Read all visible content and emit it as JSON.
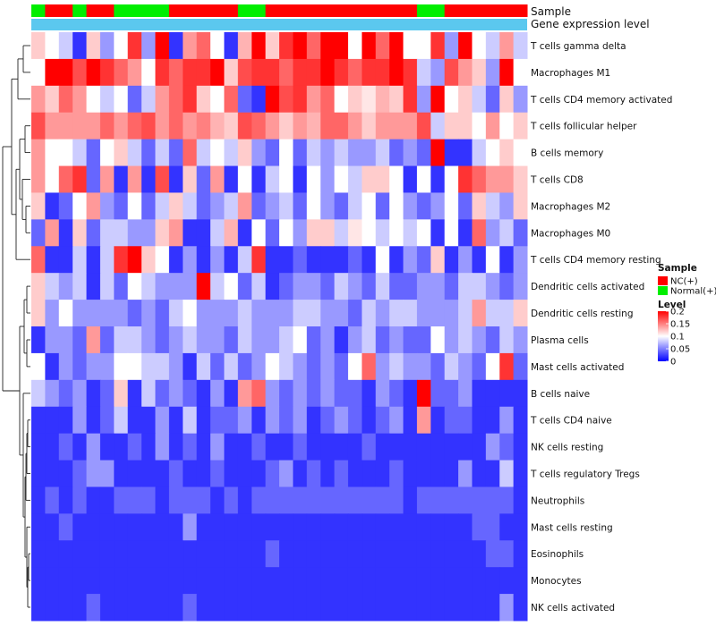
{
  "chart_data": {
    "type": "heatmap",
    "title": "",
    "n_samples": 36,
    "rows": [
      "T cells gamma delta",
      "Macrophages M1",
      "T cells CD4 memory activated",
      "T cells follicular helper",
      "B cells memory",
      "T cells CD8",
      "Macrophages M2",
      "Macrophages M0",
      "T cells CD4 memory resting",
      "Dendritic cells activated",
      "Dendritic cells resting",
      "Plasma cells",
      "Mast cells activated",
      "B cells naive",
      "T cells CD4 naive",
      "NK cells resting",
      "T cells regulatory  Tregs",
      "Neutrophils",
      "Mast cells resting",
      "Eosinophils",
      "Monocytes",
      "NK cells activated"
    ],
    "sample_groups": [
      "Normal(+)",
      "NC(+)",
      "NC(+)",
      "Normal(+)",
      "NC(+)",
      "NC(+)",
      "Normal(+)",
      "Normal(+)",
      "Normal(+)",
      "Normal(+)",
      "NC(+)",
      "NC(+)",
      "NC(+)",
      "NC(+)",
      "NC(+)",
      "Normal(+)",
      "Normal(+)",
      "NC(+)",
      "NC(+)",
      "NC(+)",
      "NC(+)",
      "NC(+)",
      "NC(+)",
      "NC(+)",
      "NC(+)",
      "NC(+)",
      "NC(+)",
      "NC(+)",
      "Normal(+)",
      "Normal(+)",
      "NC(+)",
      "NC(+)",
      "NC(+)",
      "NC(+)",
      "NC(+)",
      "NC(+)"
    ],
    "annotations": [
      {
        "name": "Sample",
        "type": "categorical"
      },
      {
        "name": "Gene expression level",
        "type": "continuous",
        "color": "#5bc8ef"
      }
    ],
    "values": [
      [
        0.12,
        0.1,
        0.08,
        0.02,
        0.12,
        0.06,
        0.1,
        0.18,
        0.06,
        0.2,
        0.02,
        0.14,
        0.16,
        0.1,
        0.02,
        0.13,
        0.2,
        0.12,
        0.18,
        0.2,
        0.16,
        0.22,
        0.22,
        0.1,
        0.2,
        0.16,
        0.2,
        0.1,
        0.1,
        0.18,
        0.06,
        0.2,
        0.1,
        0.08,
        0.14,
        0.08
      ],
      [
        0.1,
        0.22,
        0.2,
        0.17,
        0.2,
        0.18,
        0.16,
        0.14,
        0.1,
        0.18,
        0.16,
        0.18,
        0.18,
        0.2,
        0.12,
        0.17,
        0.18,
        0.18,
        0.16,
        0.18,
        0.18,
        0.2,
        0.18,
        0.16,
        0.18,
        0.18,
        0.2,
        0.18,
        0.08,
        0.06,
        0.17,
        0.14,
        0.12,
        0.06,
        0.22,
        0.1
      ],
      [
        0.14,
        0.12,
        0.16,
        0.14,
        0.1,
        0.08,
        0.1,
        0.04,
        0.08,
        0.14,
        0.16,
        0.18,
        0.12,
        0.1,
        0.16,
        0.04,
        0.02,
        0.22,
        0.17,
        0.18,
        0.14,
        0.16,
        0.1,
        0.12,
        0.11,
        0.13,
        0.12,
        0.18,
        0.06,
        0.24,
        0.1,
        0.12,
        0.08,
        0.04,
        0.12,
        0.06
      ],
      [
        0.17,
        0.14,
        0.14,
        0.14,
        0.14,
        0.16,
        0.14,
        0.16,
        0.17,
        0.14,
        0.16,
        0.14,
        0.15,
        0.13,
        0.12,
        0.17,
        0.16,
        0.14,
        0.12,
        0.14,
        0.13,
        0.16,
        0.16,
        0.14,
        0.12,
        0.14,
        0.14,
        0.14,
        0.17,
        0.08,
        0.12,
        0.12,
        0.1,
        0.14,
        0.1,
        0.12
      ],
      [
        0.14,
        0.1,
        0.1,
        0.08,
        0.04,
        0.1,
        0.12,
        0.08,
        0.04,
        0.08,
        0.04,
        0.16,
        0.08,
        0.1,
        0.08,
        0.12,
        0.06,
        0.04,
        0.1,
        0.04,
        0.08,
        0.06,
        0.08,
        0.06,
        0.06,
        0.08,
        0.04,
        0.06,
        0.04,
        0.24,
        0.02,
        0.02,
        0.08,
        0.1,
        0.12,
        0.1
      ],
      [
        0.14,
        0.1,
        0.16,
        0.18,
        0.04,
        0.14,
        0.02,
        0.14,
        0.02,
        0.17,
        0.02,
        0.12,
        0.04,
        0.14,
        0.02,
        0.1,
        0.02,
        0.08,
        0.1,
        0.02,
        0.1,
        0.06,
        0.1,
        0.08,
        0.12,
        0.12,
        0.1,
        0.02,
        0.1,
        0.02,
        0.1,
        0.18,
        0.16,
        0.14,
        0.14,
        0.12
      ],
      [
        0.12,
        0.02,
        0.04,
        0.1,
        0.14,
        0.06,
        0.04,
        0.1,
        0.04,
        0.08,
        0.12,
        0.08,
        0.04,
        0.06,
        0.08,
        0.14,
        0.04,
        0.06,
        0.08,
        0.04,
        0.1,
        0.06,
        0.04,
        0.08,
        0.1,
        0.04,
        0.1,
        0.06,
        0.04,
        0.06,
        0.1,
        0.04,
        0.12,
        0.08,
        0.06,
        0.12
      ],
      [
        0.04,
        0.14,
        0.02,
        0.12,
        0.04,
        0.08,
        0.08,
        0.06,
        0.06,
        0.12,
        0.14,
        0.02,
        0.02,
        0.08,
        0.13,
        0.02,
        0.1,
        0.04,
        0.1,
        0.06,
        0.12,
        0.12,
        0.08,
        0.11,
        0.1,
        0.08,
        0.1,
        0.08,
        0.1,
        0.02,
        0.1,
        0.02,
        0.16,
        0.06,
        0.08,
        0.04
      ],
      [
        0.16,
        0.02,
        0.02,
        0.08,
        0.02,
        0.08,
        0.18,
        0.2,
        0.12,
        0.1,
        0.02,
        0.06,
        0.02,
        0.06,
        0.02,
        0.08,
        0.18,
        0.02,
        0.02,
        0.04,
        0.02,
        0.02,
        0.02,
        0.04,
        0.02,
        0.1,
        0.02,
        0.06,
        0.04,
        0.12,
        0.02,
        0.06,
        0.02,
        0.1,
        0.02,
        0.06
      ],
      [
        0.12,
        0.08,
        0.06,
        0.08,
        0.02,
        0.08,
        0.04,
        0.1,
        0.08,
        0.06,
        0.06,
        0.06,
        0.22,
        0.08,
        0.1,
        0.04,
        0.08,
        0.02,
        0.04,
        0.06,
        0.06,
        0.04,
        0.08,
        0.06,
        0.04,
        0.08,
        0.04,
        0.04,
        0.06,
        0.06,
        0.04,
        0.08,
        0.08,
        0.06,
        0.04,
        0.06
      ],
      [
        0.12,
        0.06,
        0.1,
        0.06,
        0.06,
        0.06,
        0.06,
        0.04,
        0.06,
        0.04,
        0.08,
        0.1,
        0.06,
        0.06,
        0.06,
        0.08,
        0.06,
        0.06,
        0.06,
        0.08,
        0.08,
        0.06,
        0.06,
        0.04,
        0.08,
        0.06,
        0.08,
        0.08,
        0.06,
        0.06,
        0.06,
        0.08,
        0.14,
        0.08,
        0.08,
        0.12
      ],
      [
        0.02,
        0.06,
        0.06,
        0.04,
        0.14,
        0.04,
        0.08,
        0.08,
        0.06,
        0.04,
        0.06,
        0.08,
        0.06,
        0.06,
        0.04,
        0.08,
        0.06,
        0.06,
        0.08,
        0.1,
        0.04,
        0.06,
        0.02,
        0.06,
        0.08,
        0.04,
        0.06,
        0.04,
        0.04,
        0.1,
        0.06,
        0.08,
        0.06,
        0.04,
        0.08,
        0.06
      ],
      [
        0.1,
        0.02,
        0.06,
        0.04,
        0.06,
        0.06,
        0.1,
        0.1,
        0.08,
        0.08,
        0.06,
        0.02,
        0.08,
        0.04,
        0.08,
        0.04,
        0.06,
        0.1,
        0.08,
        0.06,
        0.04,
        0.06,
        0.04,
        0.1,
        0.16,
        0.06,
        0.08,
        0.06,
        0.06,
        0.04,
        0.08,
        0.06,
        0.04,
        0.1,
        0.18,
        0.04
      ],
      [
        0.08,
        0.06,
        0.04,
        0.06,
        0.02,
        0.04,
        0.12,
        0.02,
        0.08,
        0.04,
        0.06,
        0.04,
        0.02,
        0.06,
        0.02,
        0.14,
        0.16,
        0.06,
        0.04,
        0.06,
        0.04,
        0.06,
        0.04,
        0.04,
        0.02,
        0.06,
        0.04,
        0.02,
        0.24,
        0.04,
        0.04,
        0.06,
        0.02,
        0.02,
        0.02,
        0.02
      ],
      [
        0.02,
        0.02,
        0.02,
        0.06,
        0.02,
        0.04,
        0.08,
        0.02,
        0.02,
        0.06,
        0.02,
        0.08,
        0.02,
        0.04,
        0.04,
        0.06,
        0.02,
        0.06,
        0.04,
        0.06,
        0.02,
        0.04,
        0.06,
        0.04,
        0.02,
        0.04,
        0.06,
        0.02,
        0.14,
        0.02,
        0.04,
        0.04,
        0.02,
        0.02,
        0.06,
        0.02
      ],
      [
        0.02,
        0.02,
        0.04,
        0.02,
        0.06,
        0.02,
        0.02,
        0.04,
        0.02,
        0.06,
        0.02,
        0.04,
        0.02,
        0.06,
        0.02,
        0.02,
        0.04,
        0.02,
        0.02,
        0.04,
        0.02,
        0.02,
        0.02,
        0.02,
        0.04,
        0.02,
        0.02,
        0.02,
        0.02,
        0.02,
        0.02,
        0.02,
        0.02,
        0.06,
        0.04,
        0.02
      ],
      [
        0.02,
        0.02,
        0.02,
        0.04,
        0.06,
        0.06,
        0.02,
        0.02,
        0.02,
        0.02,
        0.04,
        0.02,
        0.02,
        0.04,
        0.02,
        0.02,
        0.02,
        0.04,
        0.06,
        0.02,
        0.04,
        0.02,
        0.04,
        0.02,
        0.02,
        0.02,
        0.04,
        0.02,
        0.02,
        0.02,
        0.02,
        0.06,
        0.02,
        0.02,
        0.08,
        0.02
      ],
      [
        0.02,
        0.04,
        0.02,
        0.04,
        0.02,
        0.02,
        0.04,
        0.04,
        0.04,
        0.02,
        0.04,
        0.04,
        0.04,
        0.02,
        0.04,
        0.02,
        0.04,
        0.04,
        0.04,
        0.04,
        0.04,
        0.04,
        0.04,
        0.04,
        0.04,
        0.04,
        0.04,
        0.02,
        0.04,
        0.04,
        0.04,
        0.04,
        0.04,
        0.04,
        0.04,
        0.02
      ],
      [
        0.02,
        0.02,
        0.04,
        0.02,
        0.02,
        0.02,
        0.02,
        0.02,
        0.02,
        0.02,
        0.02,
        0.06,
        0.02,
        0.02,
        0.02,
        0.02,
        0.02,
        0.02,
        0.02,
        0.02,
        0.02,
        0.02,
        0.02,
        0.02,
        0.02,
        0.02,
        0.02,
        0.02,
        0.02,
        0.02,
        0.02,
        0.02,
        0.04,
        0.04,
        0.02,
        0.02
      ],
      [
        0.02,
        0.02,
        0.02,
        0.02,
        0.02,
        0.02,
        0.02,
        0.02,
        0.02,
        0.02,
        0.02,
        0.02,
        0.02,
        0.02,
        0.02,
        0.02,
        0.02,
        0.04,
        0.02,
        0.02,
        0.02,
        0.02,
        0.02,
        0.02,
        0.02,
        0.02,
        0.02,
        0.02,
        0.02,
        0.02,
        0.02,
        0.02,
        0.02,
        0.04,
        0.04,
        0.02
      ],
      [
        0.02,
        0.02,
        0.02,
        0.02,
        0.02,
        0.02,
        0.02,
        0.02,
        0.02,
        0.02,
        0.02,
        0.02,
        0.02,
        0.02,
        0.02,
        0.02,
        0.02,
        0.02,
        0.02,
        0.02,
        0.02,
        0.02,
        0.02,
        0.02,
        0.02,
        0.02,
        0.02,
        0.02,
        0.02,
        0.02,
        0.02,
        0.02,
        0.02,
        0.02,
        0.02,
        0.02
      ],
      [
        0.02,
        0.02,
        0.02,
        0.02,
        0.04,
        0.02,
        0.02,
        0.02,
        0.02,
        0.02,
        0.02,
        0.04,
        0.02,
        0.02,
        0.02,
        0.02,
        0.02,
        0.02,
        0.02,
        0.02,
        0.02,
        0.02,
        0.02,
        0.02,
        0.02,
        0.02,
        0.02,
        0.02,
        0.02,
        0.02,
        0.02,
        0.02,
        0.02,
        0.02,
        0.06,
        0.02
      ]
    ],
    "legend": {
      "sample": {
        "title": "Sample",
        "items": [
          {
            "label": "NC(+)",
            "color": "#ff0000"
          },
          {
            "label": "Normal(+)",
            "color": "#00ee00"
          }
        ]
      },
      "level": {
        "title": "Level",
        "ticks": [
          0.2,
          0.15,
          0.1,
          0.05,
          0
        ],
        "tick_labels": [
          "0.2",
          "0.15",
          "0.1",
          "0.05",
          "0"
        ],
        "range": [
          0,
          0.2
        ],
        "colors": {
          "low": "#0000ff",
          "mid": "#ffffff",
          "high": "#ff0000"
        }
      }
    }
  }
}
